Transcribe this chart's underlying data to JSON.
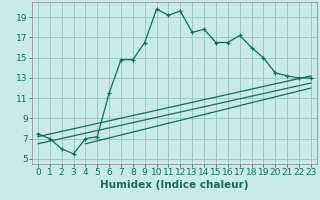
{
  "title": "",
  "xlabel": "Humidex (Indice chaleur)",
  "bg_color": "#c8eae8",
  "grid_color": "#a0c8c4",
  "line_color": "#1a6a5a",
  "xlim": [
    -0.5,
    23.5
  ],
  "ylim": [
    4.5,
    20.5
  ],
  "xticks": [
    0,
    1,
    2,
    3,
    4,
    5,
    6,
    7,
    8,
    9,
    10,
    11,
    12,
    13,
    14,
    15,
    16,
    17,
    18,
    19,
    20,
    21,
    22,
    23
  ],
  "yticks": [
    5,
    7,
    9,
    11,
    13,
    15,
    17,
    19
  ],
  "line1_x": [
    0,
    1,
    2,
    3,
    4,
    5,
    6,
    7,
    8,
    9,
    10,
    11,
    12,
    13,
    14,
    15,
    16,
    17,
    18,
    19,
    20,
    21,
    22,
    23
  ],
  "line1_y": [
    7.5,
    7.0,
    6.0,
    5.5,
    7.0,
    7.2,
    11.5,
    14.8,
    14.8,
    16.5,
    19.8,
    19.2,
    19.6,
    17.5,
    17.8,
    16.5,
    16.5,
    17.2,
    16.0,
    15.0,
    13.5,
    13.2,
    13.0,
    13.0
  ],
  "line2_x": [
    0,
    23
  ],
  "line2_y": [
    7.2,
    13.2
  ],
  "line3_x": [
    0,
    23
  ],
  "line3_y": [
    6.5,
    12.5
  ],
  "line4_x": [
    4,
    23
  ],
  "line4_y": [
    6.5,
    12.0
  ],
  "xlabel_fontsize": 7.5,
  "tick_fontsize": 6.5
}
